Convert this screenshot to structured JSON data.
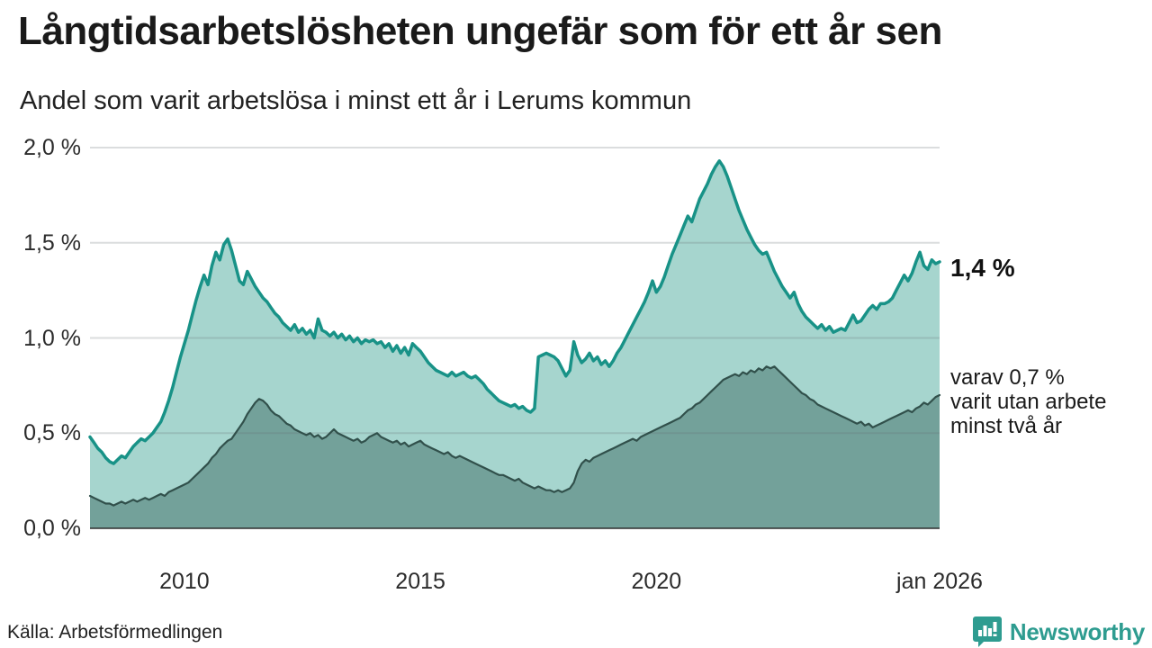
{
  "title": "Långtidsarbetslösheten ungefär som för ett år sen",
  "subtitle": "Andel som varit arbetslösa i minst ett år i Lerums kommun",
  "source": "Källa: Arbetsförmedlingen",
  "branding": {
    "name": "Newsworthy",
    "color": "#2e9c90"
  },
  "annotations": {
    "latest_total": "1,4 %",
    "breakdown_line1": "varav 0,7 %",
    "breakdown_line2": "varit utan arbete",
    "breakdown_line3": "minst två år"
  },
  "colors": {
    "line_1yr": "#189287",
    "fill_1yr": "#a6d5ce",
    "line_2yr": "#31504b",
    "fill_2yr": "#73a19a",
    "gridline": "rgba(105,112,118,0.24)",
    "axis": "#2e2e2e",
    "text": "#1a1a1a"
  },
  "chart_data": {
    "type": "area",
    "title": "Långtidsarbetslösheten ungefär som för ett år sen",
    "subtitle": "Andel som varit arbetslösa i minst ett år i Lerums kommun",
    "unit": "%",
    "x_interval": "monthly",
    "x_start_year": 2008,
    "x_end_year": 2026,
    "ylim": [
      0,
      2.0
    ],
    "grid_values": [
      0.5,
      1.0,
      1.5,
      2.0
    ],
    "y_ticks": [
      {
        "value": 0.0,
        "label": "0,0 %"
      },
      {
        "value": 0.5,
        "label": "0,5 %"
      },
      {
        "value": 1.0,
        "label": "1,0 %"
      },
      {
        "value": 1.5,
        "label": "1,5 %"
      },
      {
        "value": 2.0,
        "label": "2,0 %"
      }
    ],
    "x_ticks": [
      {
        "year": 2010,
        "label": "2010"
      },
      {
        "year": 2015,
        "label": "2015"
      },
      {
        "year": 2020,
        "label": "2020"
      },
      {
        "year": 2026,
        "label": "jan 2026"
      }
    ],
    "series": [
      {
        "name": "Arbetslösa minst ett år",
        "latest_value": 1.4,
        "stroke": "#189287",
        "fill": "#a6d5ce",
        "stroke_width": 3.5,
        "values": [
          0.48,
          0.45,
          0.42,
          0.4,
          0.37,
          0.35,
          0.34,
          0.36,
          0.38,
          0.37,
          0.4,
          0.43,
          0.45,
          0.47,
          0.46,
          0.48,
          0.5,
          0.53,
          0.56,
          0.61,
          0.67,
          0.74,
          0.82,
          0.9,
          0.97,
          1.04,
          1.12,
          1.2,
          1.27,
          1.33,
          1.28,
          1.38,
          1.45,
          1.41,
          1.49,
          1.52,
          1.46,
          1.38,
          1.3,
          1.28,
          1.35,
          1.31,
          1.27,
          1.24,
          1.21,
          1.19,
          1.16,
          1.13,
          1.11,
          1.08,
          1.06,
          1.04,
          1.07,
          1.03,
          1.05,
          1.02,
          1.04,
          1.0,
          1.1,
          1.04,
          1.03,
          1.01,
          1.03,
          1.0,
          1.02,
          0.99,
          1.01,
          0.98,
          1.0,
          0.97,
          0.99,
          0.98,
          0.99,
          0.97,
          0.98,
          0.95,
          0.97,
          0.93,
          0.96,
          0.92,
          0.95,
          0.91,
          0.97,
          0.95,
          0.93,
          0.9,
          0.87,
          0.85,
          0.83,
          0.82,
          0.81,
          0.8,
          0.82,
          0.8,
          0.81,
          0.82,
          0.8,
          0.79,
          0.8,
          0.78,
          0.76,
          0.73,
          0.71,
          0.69,
          0.67,
          0.66,
          0.65,
          0.64,
          0.65,
          0.63,
          0.64,
          0.62,
          0.61,
          0.63,
          0.9,
          0.91,
          0.92,
          0.91,
          0.9,
          0.88,
          0.84,
          0.8,
          0.83,
          0.98,
          0.91,
          0.87,
          0.89,
          0.92,
          0.88,
          0.9,
          0.86,
          0.88,
          0.85,
          0.88,
          0.92,
          0.95,
          0.99,
          1.03,
          1.07,
          1.11,
          1.15,
          1.19,
          1.24,
          1.3,
          1.24,
          1.27,
          1.32,
          1.38,
          1.44,
          1.49,
          1.54,
          1.59,
          1.64,
          1.61,
          1.67,
          1.73,
          1.77,
          1.81,
          1.86,
          1.9,
          1.93,
          1.9,
          1.85,
          1.79,
          1.73,
          1.67,
          1.62,
          1.57,
          1.53,
          1.49,
          1.46,
          1.44,
          1.45,
          1.4,
          1.35,
          1.31,
          1.27,
          1.24,
          1.21,
          1.24,
          1.18,
          1.14,
          1.11,
          1.09,
          1.07,
          1.05,
          1.07,
          1.04,
          1.06,
          1.03,
          1.04,
          1.05,
          1.04,
          1.08,
          1.12,
          1.08,
          1.09,
          1.12,
          1.15,
          1.17,
          1.15,
          1.18,
          1.18,
          1.19,
          1.21,
          1.25,
          1.29,
          1.33,
          1.3,
          1.34,
          1.4,
          1.45,
          1.38,
          1.36,
          1.41,
          1.39,
          1.4
        ]
      },
      {
        "name": "Varav utan arbete minst två år",
        "latest_value": 0.7,
        "stroke": "#31504b",
        "fill": "#73a19a",
        "stroke_width": 2.2,
        "values": [
          0.17,
          0.16,
          0.15,
          0.14,
          0.13,
          0.13,
          0.12,
          0.13,
          0.14,
          0.13,
          0.14,
          0.15,
          0.14,
          0.15,
          0.16,
          0.15,
          0.16,
          0.17,
          0.18,
          0.17,
          0.19,
          0.2,
          0.21,
          0.22,
          0.23,
          0.24,
          0.26,
          0.28,
          0.3,
          0.32,
          0.34,
          0.37,
          0.39,
          0.42,
          0.44,
          0.46,
          0.47,
          0.5,
          0.53,
          0.56,
          0.6,
          0.63,
          0.66,
          0.68,
          0.67,
          0.65,
          0.62,
          0.6,
          0.59,
          0.57,
          0.55,
          0.54,
          0.52,
          0.51,
          0.5,
          0.49,
          0.5,
          0.48,
          0.49,
          0.47,
          0.48,
          0.5,
          0.52,
          0.5,
          0.49,
          0.48,
          0.47,
          0.46,
          0.47,
          0.45,
          0.46,
          0.48,
          0.49,
          0.5,
          0.48,
          0.47,
          0.46,
          0.45,
          0.46,
          0.44,
          0.45,
          0.43,
          0.44,
          0.45,
          0.46,
          0.44,
          0.43,
          0.42,
          0.41,
          0.4,
          0.39,
          0.4,
          0.38,
          0.37,
          0.38,
          0.37,
          0.36,
          0.35,
          0.34,
          0.33,
          0.32,
          0.31,
          0.3,
          0.29,
          0.28,
          0.28,
          0.27,
          0.26,
          0.25,
          0.26,
          0.24,
          0.23,
          0.22,
          0.21,
          0.22,
          0.21,
          0.2,
          0.2,
          0.19,
          0.2,
          0.19,
          0.2,
          0.21,
          0.24,
          0.3,
          0.34,
          0.36,
          0.35,
          0.37,
          0.38,
          0.39,
          0.4,
          0.41,
          0.42,
          0.43,
          0.44,
          0.45,
          0.46,
          0.47,
          0.46,
          0.48,
          0.49,
          0.5,
          0.51,
          0.52,
          0.53,
          0.54,
          0.55,
          0.56,
          0.57,
          0.58,
          0.6,
          0.62,
          0.63,
          0.65,
          0.66,
          0.68,
          0.7,
          0.72,
          0.74,
          0.76,
          0.78,
          0.79,
          0.8,
          0.81,
          0.8,
          0.82,
          0.81,
          0.83,
          0.82,
          0.84,
          0.83,
          0.85,
          0.84,
          0.85,
          0.83,
          0.81,
          0.79,
          0.77,
          0.75,
          0.73,
          0.71,
          0.7,
          0.68,
          0.67,
          0.65,
          0.64,
          0.63,
          0.62,
          0.61,
          0.6,
          0.59,
          0.58,
          0.57,
          0.56,
          0.55,
          0.56,
          0.54,
          0.55,
          0.53,
          0.54,
          0.55,
          0.56,
          0.57,
          0.58,
          0.59,
          0.6,
          0.61,
          0.62,
          0.61,
          0.63,
          0.64,
          0.66,
          0.65,
          0.67,
          0.69,
          0.7
        ]
      }
    ]
  }
}
